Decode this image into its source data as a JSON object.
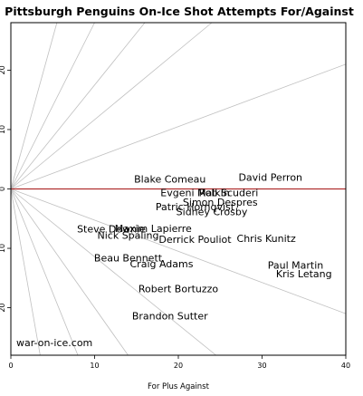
{
  "chart_data": {
    "type": "scatter",
    "title": "Pittsburgh Penguins On-Ice Shot Attempts For/Against",
    "xlabel": "For Plus Against",
    "ylabel": "",
    "xlim": [
      0,
      40
    ],
    "ylim": [
      -28,
      28
    ],
    "x_ticks": [
      "0",
      "10",
      "20",
      "30",
      "40"
    ],
    "y_ticks": [
      {
        "value": 20,
        "label": "20"
      },
      {
        "value": 10,
        "label": "10"
      },
      {
        "value": 0,
        "label": "0"
      },
      {
        "value": -10,
        "label": "10"
      },
      {
        "value": -20,
        "label": "20"
      }
    ],
    "reference_line": {
      "y": 0,
      "color": "#b03030"
    },
    "fan_lines": [
      {
        "x_end": 5.5,
        "y_end": 28
      },
      {
        "x_end": 10,
        "y_end": 28
      },
      {
        "x_end": 16,
        "y_end": 28
      },
      {
        "x_end": 24,
        "y_end": 28
      },
      {
        "x_end": 40,
        "y_end": 21
      },
      {
        "x_end": 40,
        "y_end": -21
      },
      {
        "x_end": 24.5,
        "y_end": -28
      },
      {
        "x_end": 14,
        "y_end": -28
      },
      {
        "x_end": 8,
        "y_end": -28
      },
      {
        "x_end": 3.5,
        "y_end": -28
      }
    ],
    "points": [
      {
        "name": "Blake Comeau",
        "x": 19,
        "y": 1.7
      },
      {
        "name": "David Perron",
        "x": 31,
        "y": 2.0
      },
      {
        "name": "Evgeni Malkin",
        "x": 22,
        "y": -0.6
      },
      {
        "name": "Rob Scuderi",
        "x": 26,
        "y": -0.6
      },
      {
        "name": "Simon Despres",
        "x": 25,
        "y": -2.2
      },
      {
        "name": "Patric Hornqvist",
        "x": 22,
        "y": -3.0
      },
      {
        "name": "Sidney Crosby",
        "x": 24,
        "y": -3.8
      },
      {
        "name": "Steve Downie",
        "x": 12,
        "y": -6.7
      },
      {
        "name": "Maxim Lapierre",
        "x": 17,
        "y": -6.6
      },
      {
        "name": "Nick Spaling",
        "x": 14,
        "y": -7.8
      },
      {
        "name": "Derrick Pouliot",
        "x": 22,
        "y": -8.5
      },
      {
        "name": "Chris Kunitz",
        "x": 30.5,
        "y": -8.3
      },
      {
        "name": "Beau Bennett",
        "x": 14,
        "y": -11.6
      },
      {
        "name": "Craig Adams",
        "x": 18,
        "y": -12.6
      },
      {
        "name": "Paul Martin",
        "x": 34,
        "y": -12.8
      },
      {
        "name": "Kris Letang",
        "x": 35,
        "y": -14.3
      },
      {
        "name": "Robert Bortuzzo",
        "x": 20,
        "y": -16.8
      },
      {
        "name": "Brandon Sutter",
        "x": 19,
        "y": -21.4
      }
    ]
  },
  "watermark": "war-on-ice.com"
}
